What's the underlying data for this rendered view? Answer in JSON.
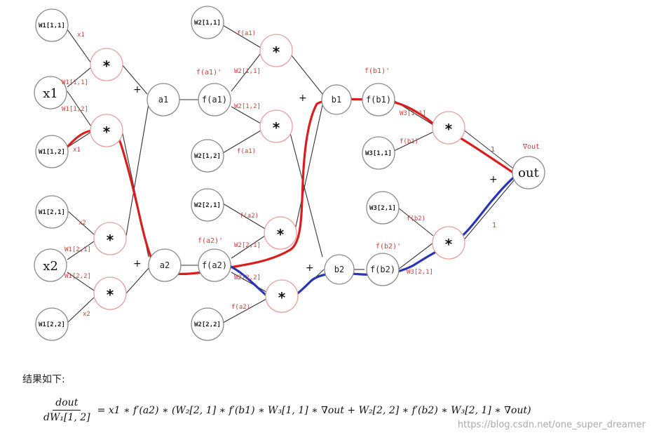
{
  "nodes": {
    "w1_11": "W1[1,1]",
    "x1": "x1",
    "w1_12": "W1[1,2]",
    "w1_21": "W1[2,1]",
    "x2": "x2",
    "w1_22": "W1[2,2]",
    "mul": "*",
    "a1": "a1",
    "a2": "a2",
    "w2_11": "W2[1,1]",
    "f_a1": "f(a1)",
    "w2_12": "W2[1,2]",
    "w2_21": "W2[2,1]",
    "f_a2": "f(a2)",
    "w2_22": "W2[2,2]",
    "b1": "b1",
    "b2": "b2",
    "f_b1": "f(b1)",
    "f_b2": "f(b2)",
    "w3_11": "W3[1,1]",
    "w3_21": "W3[2,1]",
    "out": "out"
  },
  "annotations": {
    "x1": "x1",
    "w1_11": "W1[1,1]",
    "w1_12": "W1[1,2]",
    "x2": "x2",
    "w1_21": "W1[2,1]",
    "w1_22": "W1[2,2]",
    "f_a1_prime": "f(a1)'",
    "f_a1": "f(a1)",
    "w2_11": "W2[1,1]",
    "w2_12": "W2[1,2]",
    "f_a2_prime": "f(a2)'",
    "f_a2": "f(a2)",
    "w2_21": "W2[2,1]",
    "w2_22": "W2[2,2]",
    "f_b1_prime": "f(b1)'",
    "f_b1": "f(b1)",
    "w3_11": "W3[1,1]",
    "f_b2_prime": "f(b2)'",
    "f_b2": "f(b2)",
    "w3_21": "W3[2,1]",
    "grad_out": "∇out",
    "one": "1"
  },
  "plus": "+",
  "caption": "结果如下:",
  "formula": {
    "numerator": "dout",
    "denominator": "dW₁[1, 2]",
    "rhs": "= x1 ∗ f′(a2) ∗ (W₂[2, 1] ∗ f′(b1) ∗ W₃[1, 1] ∗ ∇out + W₂[2, 2] ∗ f′(b2) ∗ W₃[2, 1] ∗ ∇out)"
  },
  "watermark": "https://blog.csdn.net/one_super_dreamer",
  "colors": {
    "red_path": "#d81e1e",
    "blue_path": "#2a35b5",
    "red_circle": "#e5a0a0",
    "gray_circle": "#8a8a8a"
  }
}
